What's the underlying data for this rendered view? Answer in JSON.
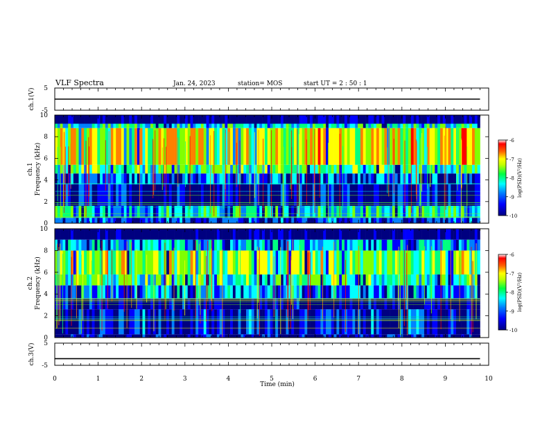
{
  "header": {
    "title": "VLF Spectra",
    "date": "Jan. 24, 2023",
    "station": "station= MOS",
    "start": "start  UT =   2 : 50 : 1"
  },
  "chart_data": [
    {
      "type": "line",
      "name": "ch1-voltage",
      "ylabel": "ch.1(V)",
      "ylim": [
        -5,
        5
      ],
      "yticks": [
        "5",
        "-5"
      ],
      "xlim": [
        0,
        10
      ],
      "x": [
        0,
        9.8
      ],
      "y": [
        0,
        0
      ]
    },
    {
      "type": "heatmap",
      "name": "ch1-spectrogram",
      "ylabel_lines": [
        "ch.1",
        "Frequency  (kHz)"
      ],
      "xlim": [
        0,
        10
      ],
      "ylim": [
        0,
        10
      ],
      "yticks": [
        "0",
        "2",
        "4",
        "6",
        "8",
        "10"
      ],
      "data_extent_x": [
        0,
        9.8
      ],
      "bands": [
        {
          "from": 0,
          "to": 0.5,
          "level": -9.2
        },
        {
          "from": 0.5,
          "to": 1.6,
          "level": -8.4
        },
        {
          "from": 1.6,
          "to": 3.6,
          "level": -9.6
        },
        {
          "from": 3.6,
          "to": 4.6,
          "level": -9.0
        },
        {
          "from": 4.6,
          "to": 5.4,
          "level": -8.0
        },
        {
          "from": 5.4,
          "to": 8.8,
          "level": -7.2
        },
        {
          "from": 8.8,
          "to": 9.2,
          "level": -8.2
        },
        {
          "from": 9.2,
          "to": 10,
          "level": -10
        }
      ],
      "colorbar": {
        "label": "log(PSD)(V²/Hz)",
        "min": -10,
        "max": -6,
        "ticks": [
          "-6",
          "-7",
          "-8",
          "-9",
          "-10"
        ]
      }
    },
    {
      "type": "heatmap",
      "name": "ch2-spectrogram",
      "ylabel_lines": [
        "ch.2",
        "Frequency  (kHz)"
      ],
      "xlim": [
        0,
        10
      ],
      "ylim": [
        0,
        10
      ],
      "yticks": [
        "0",
        "2",
        "4",
        "6",
        "8",
        "10"
      ],
      "data_extent_x": [
        0,
        9.8
      ],
      "bands": [
        {
          "from": 0,
          "to": 0.3,
          "level": -9.6
        },
        {
          "from": 0.3,
          "to": 2.6,
          "level": -9.4
        },
        {
          "from": 2.6,
          "to": 3.6,
          "level": -9.8
        },
        {
          "from": 3.6,
          "to": 4.8,
          "level": -8.8
        },
        {
          "from": 4.8,
          "to": 5.8,
          "level": -8.0
        },
        {
          "from": 5.8,
          "to": 8.0,
          "level": -7.6
        },
        {
          "from": 8.0,
          "to": 9.0,
          "level": -8.6
        },
        {
          "from": 9.0,
          "to": 10,
          "level": -10
        }
      ],
      "colorbar": {
        "label": "log(PSD)(V²/Hz)",
        "min": -10,
        "max": -6,
        "ticks": [
          "-6",
          "-7",
          "-8",
          "-9",
          "-10"
        ]
      }
    },
    {
      "type": "line",
      "name": "ch3-voltage",
      "ylabel": "ch.3(V)",
      "ylim": [
        -5,
        5
      ],
      "yticks": [
        "5",
        "-5"
      ],
      "xlim": [
        0,
        10
      ],
      "x": [
        0,
        9.8
      ],
      "y": [
        -2,
        -2
      ]
    }
  ],
  "x_axis": {
    "label": "Time  (min)",
    "ticks": [
      "0",
      "1",
      "2",
      "3",
      "4",
      "5",
      "6",
      "7",
      "8",
      "9",
      "10"
    ]
  },
  "colors": {
    "colormap": [
      "#000080",
      "#0000ff",
      "#0080ff",
      "#00ffff",
      "#00ff80",
      "#80ff00",
      "#ffff00",
      "#ff8000",
      "#ff0000",
      "#ffffff"
    ],
    "line": "#000000"
  }
}
